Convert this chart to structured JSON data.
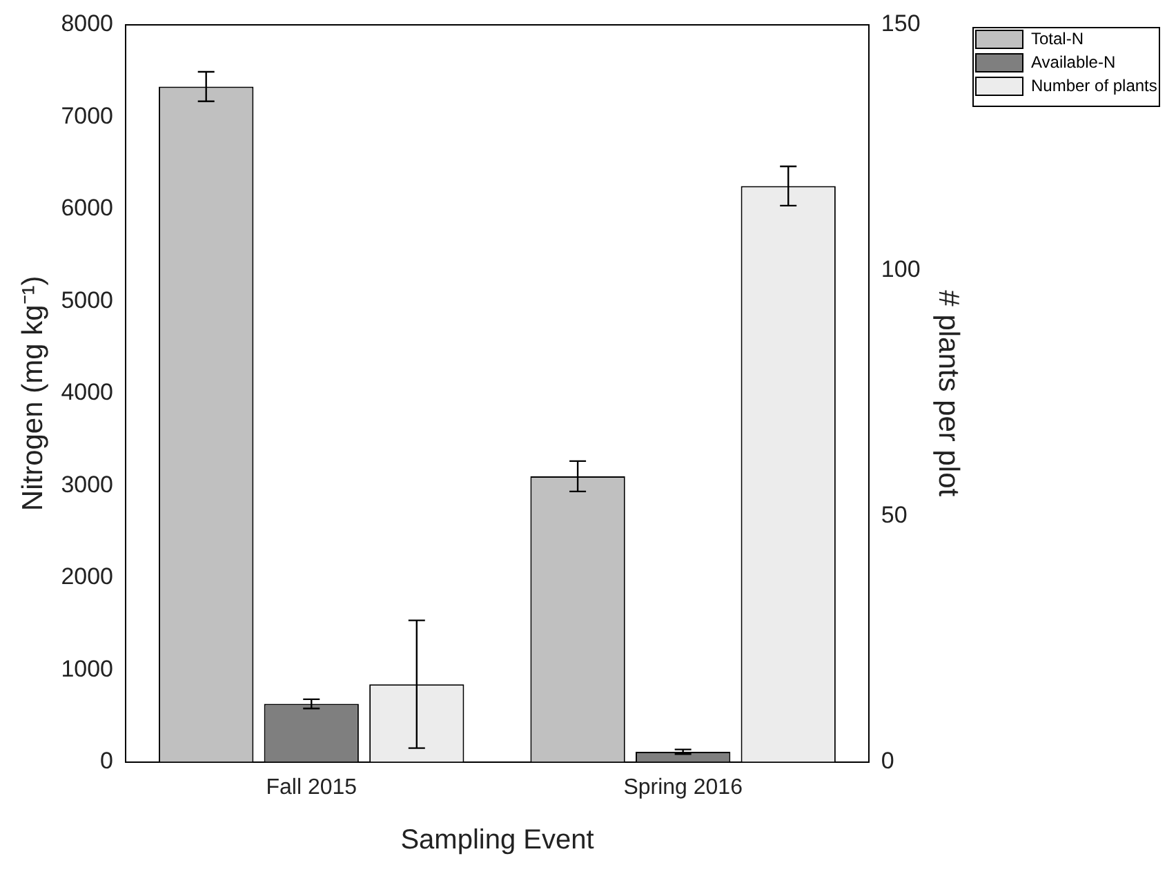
{
  "chart_data": {
    "type": "bar",
    "xlabel": "Sampling Event",
    "ylabel": "Nitrogen (mg kg⁻¹)",
    "y2label": "# plants per plot",
    "categories": [
      "Fall 2015",
      "Spring 2016"
    ],
    "series": [
      {
        "name": "Total-N",
        "color": "#c0c0c0",
        "values": [
          7330,
          3100
        ],
        "errors": [
          160,
          165
        ]
      },
      {
        "name": "Available-N",
        "color": "#7f7f7f",
        "values": [
          630,
          110
        ],
        "errors": [
          50,
          25
        ]
      },
      {
        "name": "Number of plants",
        "color": "#ececec",
        "axis": "y2",
        "values": [
          15.8,
          117.2
        ],
        "errors": [
          13,
          4
        ]
      }
    ],
    "ylim": [
      0,
      8000
    ],
    "yticks": [
      0,
      1000,
      2000,
      3000,
      4000,
      5000,
      6000,
      7000,
      8000
    ],
    "y2lim": [
      0,
      150
    ],
    "y2ticks": [
      0,
      50,
      100,
      150
    ],
    "grid": false,
    "legend": "top right"
  }
}
